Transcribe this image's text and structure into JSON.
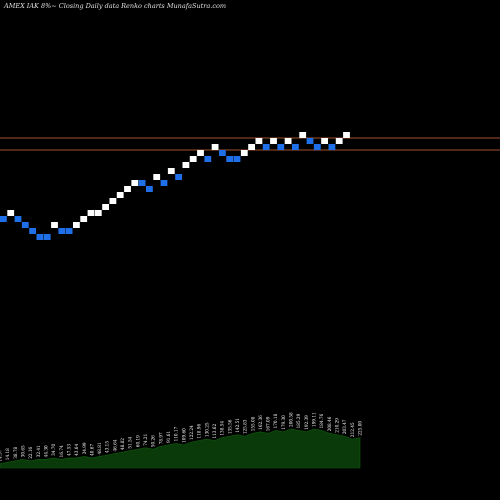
{
  "chart_data": {
    "type": "renko",
    "title": "AMEX  IAK  8%~  Closing Daily data  Renko  charts MunafaSutra.com",
    "colors": {
      "background": "#000000",
      "up_brick": "#ffffff",
      "down_brick": "#1e6fe8",
      "level_line": "#a0522d",
      "volume_fill": "#0a3a0a"
    },
    "price_range": [
      80,
      152
    ],
    "levels": [
      138,
      150
    ],
    "bricks": [
      {
        "dir": "down",
        "y": 219
      },
      {
        "dir": "up",
        "y": 213
      },
      {
        "dir": "down",
        "y": 219
      },
      {
        "dir": "down",
        "y": 225
      },
      {
        "dir": "down",
        "y": 231
      },
      {
        "dir": "down",
        "y": 237
      },
      {
        "dir": "down",
        "y": 237
      },
      {
        "dir": "up",
        "y": 225
      },
      {
        "dir": "down",
        "y": 231
      },
      {
        "dir": "down",
        "y": 231
      },
      {
        "dir": "up",
        "y": 225
      },
      {
        "dir": "up",
        "y": 219
      },
      {
        "dir": "up",
        "y": 213
      },
      {
        "dir": "up",
        "y": 213
      },
      {
        "dir": "up",
        "y": 207
      },
      {
        "dir": "up",
        "y": 201
      },
      {
        "dir": "up",
        "y": 195
      },
      {
        "dir": "up",
        "y": 189
      },
      {
        "dir": "up",
        "y": 183
      },
      {
        "dir": "down",
        "y": 183
      },
      {
        "dir": "down",
        "y": 189
      },
      {
        "dir": "up",
        "y": 177
      },
      {
        "dir": "down",
        "y": 183
      },
      {
        "dir": "up",
        "y": 171
      },
      {
        "dir": "down",
        "y": 177
      },
      {
        "dir": "up",
        "y": 165
      },
      {
        "dir": "up",
        "y": 159
      },
      {
        "dir": "up",
        "y": 153
      },
      {
        "dir": "down",
        "y": 159
      },
      {
        "dir": "up",
        "y": 147
      },
      {
        "dir": "down",
        "y": 153
      },
      {
        "dir": "down",
        "y": 159
      },
      {
        "dir": "down",
        "y": 159
      },
      {
        "dir": "up",
        "y": 153
      },
      {
        "dir": "up",
        "y": 147
      },
      {
        "dir": "up",
        "y": 141
      },
      {
        "dir": "down",
        "y": 147
      },
      {
        "dir": "up",
        "y": 141
      },
      {
        "dir": "down",
        "y": 147
      },
      {
        "dir": "up",
        "y": 141
      },
      {
        "dir": "down",
        "y": 147
      },
      {
        "dir": "up",
        "y": 135
      },
      {
        "dir": "down",
        "y": 141
      },
      {
        "dir": "down",
        "y": 147
      },
      {
        "dir": "up",
        "y": 141
      },
      {
        "dir": "down",
        "y": 147
      },
      {
        "dir": "up",
        "y": 141
      },
      {
        "dir": "up",
        "y": 135
      }
    ],
    "volume_labels": [
      "14.57",
      "14.18",
      "38.78",
      "30.65",
      "22.16",
      "32.41",
      "44.30",
      "34.70",
      "16.74",
      "47.53",
      "43.64",
      "34.99",
      "40.67",
      "48.81",
      "43.15",
      "46.64",
      "48.82",
      "51.54",
      "60.19",
      "74.21",
      "50.26",
      "78.97",
      "91.61",
      "110.17",
      "109.60",
      "122.24",
      "118.96",
      "130.25",
      "113.62",
      "138.54",
      "135.56",
      "142.51",
      "125.83",
      "155.08",
      "162.36",
      "167.09",
      "170.18",
      "179.30",
      "200.58",
      "185.29",
      "192.39",
      "199.11",
      "184.76",
      "208.46",
      "210.29",
      "203.47",
      "212.45",
      "225.00"
    ],
    "volume_values": [
      3,
      4,
      5,
      6,
      5,
      6,
      6,
      7,
      6,
      7,
      7,
      8,
      7,
      8,
      9,
      10,
      11,
      12,
      13,
      14,
      13,
      15,
      16,
      17,
      16,
      18,
      19,
      20,
      19,
      21,
      22,
      23,
      22,
      24,
      25,
      24,
      26,
      25,
      27,
      26,
      25,
      27,
      26,
      24,
      23,
      22,
      20,
      21
    ]
  }
}
